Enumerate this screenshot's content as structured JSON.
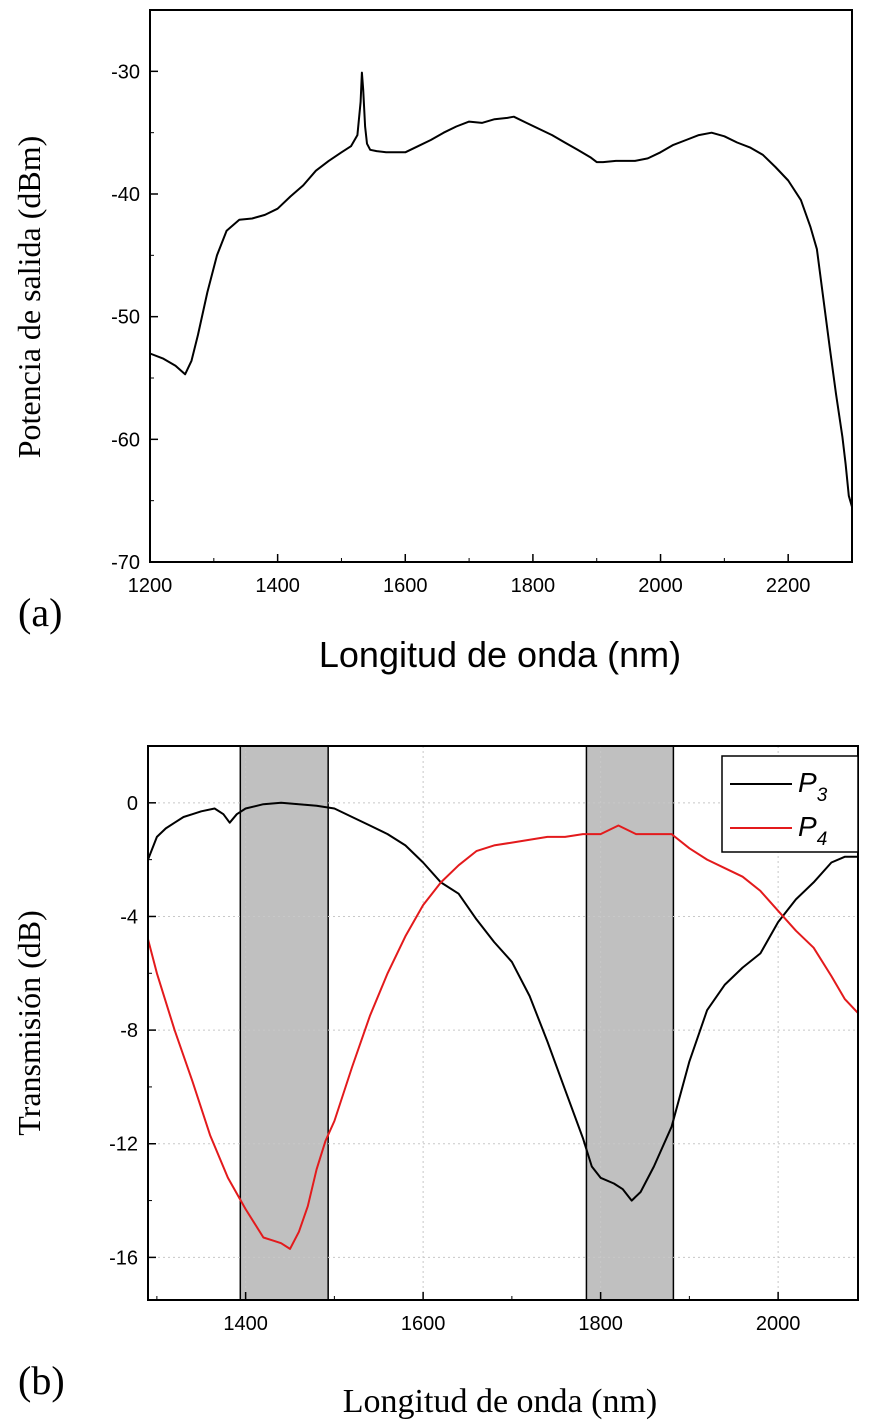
{
  "chart_data": [
    {
      "type": "line",
      "panel_label": "(a)",
      "xlabel": "Longitud de onda (nm)",
      "ylabel": "Potencia de salida (dBm)",
      "xlim": [
        1200,
        2300
      ],
      "ylim": [
        -70,
        -25
      ],
      "xticks": [
        1200,
        1400,
        1600,
        1800,
        2000,
        2200
      ],
      "xtick_labels": [
        "1200",
        "1400",
        "1600",
        "1800",
        "2000",
        "2200"
      ],
      "yticks": [
        -70,
        -60,
        -50,
        -40,
        -30
      ],
      "ytick_labels": [
        "-70",
        "-60",
        "-50",
        "-40",
        "-30"
      ],
      "grid": false,
      "series": [
        {
          "name": "Potencia de salida",
          "color": "#000000",
          "x": [
            1200,
            1220,
            1240,
            1255,
            1265,
            1275,
            1290,
            1305,
            1320,
            1340,
            1360,
            1380,
            1400,
            1420,
            1440,
            1460,
            1480,
            1500,
            1515,
            1525,
            1530,
            1532,
            1534,
            1537,
            1540,
            1545,
            1555,
            1570,
            1600,
            1620,
            1640,
            1660,
            1680,
            1700,
            1720,
            1740,
            1760,
            1770,
            1790,
            1810,
            1830,
            1850,
            1870,
            1890,
            1900,
            1910,
            1930,
            1960,
            1980,
            2000,
            2020,
            2040,
            2060,
            2080,
            2100,
            2120,
            2140,
            2160,
            2180,
            2200,
            2220,
            2235,
            2245,
            2255,
            2265,
            2275,
            2285,
            2290,
            2295,
            2300
          ],
          "y": [
            -53,
            -53.4,
            -54,
            -54.7,
            -53.6,
            -51.5,
            -48,
            -45,
            -43,
            -42.1,
            -42,
            -41.7,
            -41.2,
            -40.2,
            -39.3,
            -38.1,
            -37.3,
            -36.6,
            -36.1,
            -35.2,
            -32.5,
            -30.1,
            -31.5,
            -34.5,
            -35.9,
            -36.4,
            -36.5,
            -36.6,
            -36.6,
            -36.1,
            -35.6,
            -35,
            -34.5,
            -34.1,
            -34.2,
            -33.9,
            -33.8,
            -33.7,
            -34.2,
            -34.7,
            -35.2,
            -35.8,
            -36.4,
            -37,
            -37.4,
            -37.4,
            -37.3,
            -37.3,
            -37.1,
            -36.6,
            -36,
            -35.6,
            -35.2,
            -35,
            -35.3,
            -35.8,
            -36.2,
            -36.8,
            -37.8,
            -38.9,
            -40.5,
            -42.7,
            -44.5,
            -48.5,
            -52.5,
            -56.3,
            -59.8,
            -62,
            -64.6,
            -65.5
          ]
        }
      ]
    },
    {
      "type": "line",
      "panel_label": "(b)",
      "xlabel": "Longitud de onda (nm)",
      "ylabel": "Transmisión (dB)",
      "xlim": [
        1290,
        2090
      ],
      "ylim": [
        -17.5,
        2
      ],
      "xticks": [
        1400,
        1600,
        1800,
        2000
      ],
      "xtick_labels": [
        "1400",
        "1600",
        "1800",
        "2000"
      ],
      "yticks": [
        -16,
        -12,
        -8,
        -4,
        0
      ],
      "ytick_labels": [
        "-16",
        "-12",
        "-8",
        "-4",
        "0"
      ],
      "grid": true,
      "shaded_bands": [
        [
          1394,
          1493
        ],
        [
          1784,
          1882
        ]
      ],
      "legend": {
        "location": "top-right",
        "entries": [
          {
            "base": "P",
            "sub": "3",
            "color": "#000000"
          },
          {
            "base": "P",
            "sub": "4",
            "color": "#e31a1c"
          }
        ]
      },
      "series": [
        {
          "name": "P3",
          "color": "#000000",
          "x": [
            1290,
            1300,
            1310,
            1320,
            1330,
            1340,
            1350,
            1365,
            1375,
            1382,
            1390,
            1400,
            1420,
            1440,
            1460,
            1480,
            1500,
            1520,
            1540,
            1560,
            1580,
            1600,
            1620,
            1640,
            1660,
            1680,
            1700,
            1720,
            1740,
            1760,
            1780,
            1790,
            1800,
            1815,
            1825,
            1835,
            1845,
            1860,
            1880,
            1900,
            1920,
            1940,
            1960,
            1980,
            2000,
            2020,
            2040,
            2060,
            2075,
            2090
          ],
          "y": [
            -2,
            -1.2,
            -0.9,
            -0.7,
            -0.5,
            -0.4,
            -0.3,
            -0.2,
            -0.4,
            -0.7,
            -0.4,
            -0.2,
            -0.05,
            0,
            -0.05,
            -0.1,
            -0.2,
            -0.5,
            -0.8,
            -1.1,
            -1.5,
            -2.1,
            -2.8,
            -3.2,
            -4.1,
            -4.9,
            -5.6,
            -6.8,
            -8.4,
            -10.1,
            -11.8,
            -12.8,
            -13.2,
            -13.4,
            -13.6,
            -14,
            -13.7,
            -12.8,
            -11.4,
            -9.1,
            -7.3,
            -6.4,
            -5.8,
            -5.3,
            -4.2,
            -3.4,
            -2.8,
            -2.1,
            -1.9,
            -1.9
          ]
        },
        {
          "name": "P4",
          "color": "#e31a1c",
          "x": [
            1290,
            1300,
            1320,
            1340,
            1360,
            1380,
            1400,
            1420,
            1430,
            1440,
            1450,
            1460,
            1470,
            1480,
            1490,
            1500,
            1520,
            1540,
            1560,
            1580,
            1600,
            1620,
            1640,
            1660,
            1680,
            1700,
            1720,
            1740,
            1760,
            1780,
            1800,
            1820,
            1840,
            1860,
            1880,
            1900,
            1920,
            1940,
            1960,
            1980,
            2000,
            2020,
            2040,
            2060,
            2075,
            2090
          ],
          "y": [
            -4.8,
            -6,
            -8,
            -9.8,
            -11.7,
            -13.2,
            -14.3,
            -15.3,
            -15.4,
            -15.5,
            -15.7,
            -15.1,
            -14.2,
            -12.9,
            -11.9,
            -11.2,
            -9.3,
            -7.5,
            -6,
            -4.7,
            -3.6,
            -2.8,
            -2.2,
            -1.7,
            -1.5,
            -1.4,
            -1.3,
            -1.2,
            -1.2,
            -1.1,
            -1.1,
            -0.8,
            -1.1,
            -1.1,
            -1.1,
            -1.6,
            -2,
            -2.3,
            -2.6,
            -3.1,
            -3.8,
            -4.5,
            -5.1,
            -6.1,
            -6.9,
            -7.4
          ]
        }
      ]
    }
  ]
}
